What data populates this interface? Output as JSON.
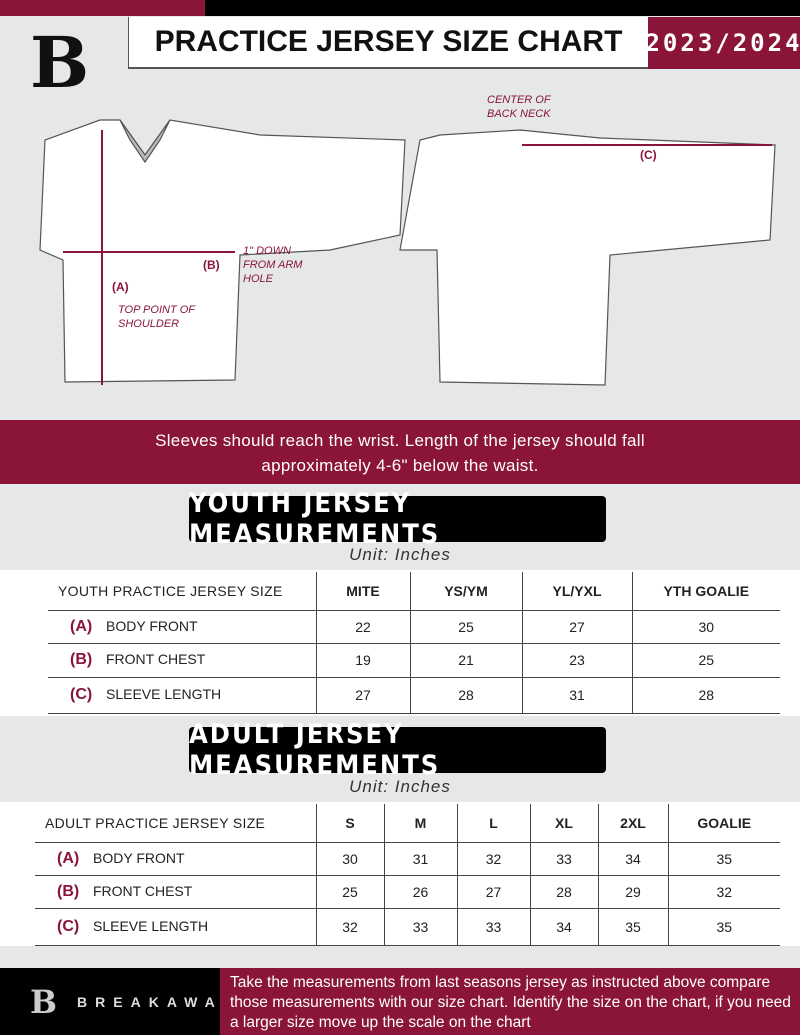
{
  "header": {
    "title": "PRACTICE JERSEY SIZE CHART",
    "season": "2023/2024",
    "logo_letter": "B"
  },
  "diagram": {
    "front_labels": {
      "a": "(A)",
      "a_note": "TOP POINT OF SHOULDER",
      "b": "(B)",
      "b_note": "1\" DOWN FROM ARM HOLE"
    },
    "back_labels": {
      "c": "(C)",
      "c_note": "CENTER OF BACK NECK"
    }
  },
  "banner": {
    "line1": "Sleeves should reach the wrist. Length of the jersey should fall",
    "line2": "approximately 4-6\" below the waist."
  },
  "youth": {
    "title": "YOUTH JERSEY MEASUREMENTS",
    "unit": "Unit: Inches",
    "headers": [
      "YOUTH PRACTICE JERSEY SIZE",
      "MITE",
      "YS/YM",
      "YL/YXL",
      "YTH GOALIE"
    ],
    "rows": [
      {
        "code": "(A)",
        "label": "BODY FRONT",
        "values": [
          "22",
          "25",
          "27",
          "30"
        ]
      },
      {
        "code": "(B)",
        "label": "FRONT CHEST",
        "values": [
          "19",
          "21",
          "23",
          "25"
        ]
      },
      {
        "code": "(C)",
        "label": "SLEEVE LENGTH",
        "values": [
          "27",
          "28",
          "31",
          "28"
        ]
      }
    ]
  },
  "adult": {
    "title": "ADULT JERSEY MEASUREMENTS",
    "unit": "Unit: Inches",
    "headers": [
      "ADULT PRACTICE JERSEY SIZE",
      "S",
      "M",
      "L",
      "XL",
      "2XL",
      "GOALIE"
    ],
    "rows": [
      {
        "code": "(A)",
        "label": "BODY FRONT",
        "values": [
          "30",
          "31",
          "32",
          "33",
          "34",
          "35"
        ]
      },
      {
        "code": "(B)",
        "label": "FRONT CHEST",
        "values": [
          "25",
          "26",
          "27",
          "28",
          "29",
          "32"
        ]
      },
      {
        "code": "(C)",
        "label": "SLEEVE LENGTH",
        "values": [
          "32",
          "33",
          "33",
          "34",
          "35",
          "35"
        ]
      }
    ]
  },
  "footer": {
    "brand": "BREAKAWAY",
    "text": "Take the measurements from last seasons jersey as instructed above compare those measurements  with our size chart. Identify the size on the chart, if you need a larger size move up the scale on the chart"
  },
  "colors": {
    "accent": "#8a1538",
    "dark": "#000000",
    "background": "#e6e7e8"
  }
}
